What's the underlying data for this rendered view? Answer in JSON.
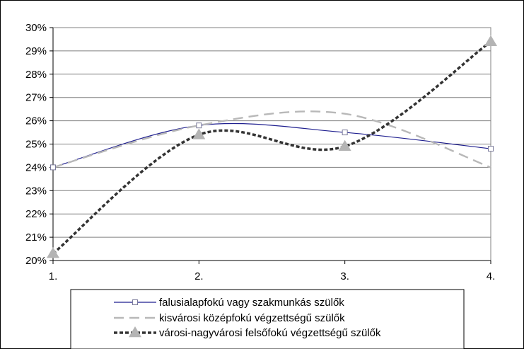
{
  "chart_data": {
    "type": "line",
    "title": "",
    "xlabel": "",
    "ylabel": "",
    "categories": [
      "1.",
      "2.",
      "3.",
      "4."
    ],
    "ylim": [
      20,
      30
    ],
    "y_ticks": [
      "20%",
      "21%",
      "22%",
      "23%",
      "24%",
      "25%",
      "26%",
      "27%",
      "28%",
      "29%",
      "30%"
    ],
    "grid": "horizontal",
    "legend_position": "bottom",
    "smooth": true,
    "series": [
      {
        "name": "falusialapfokú vagy szakmunkás szülők",
        "values": [
          24.0,
          25.8,
          25.5,
          24.8
        ],
        "color": "#1f1f8f",
        "dash": "solid",
        "marker": "square"
      },
      {
        "name": "kisvárosi középfokú végzettségű szülők",
        "values": [
          24.0,
          25.8,
          26.3,
          24.0
        ],
        "color": "#b8b8b8",
        "dash": "long-dash",
        "marker": "none"
      },
      {
        "name": "városi-nagyvárosi felsőfokú végzettségű szülők",
        "values": [
          20.3,
          25.4,
          24.9,
          29.4
        ],
        "color": "#333333",
        "dash": "dash",
        "marker": "triangle",
        "marker_color": "#b4b4b4"
      }
    ]
  }
}
